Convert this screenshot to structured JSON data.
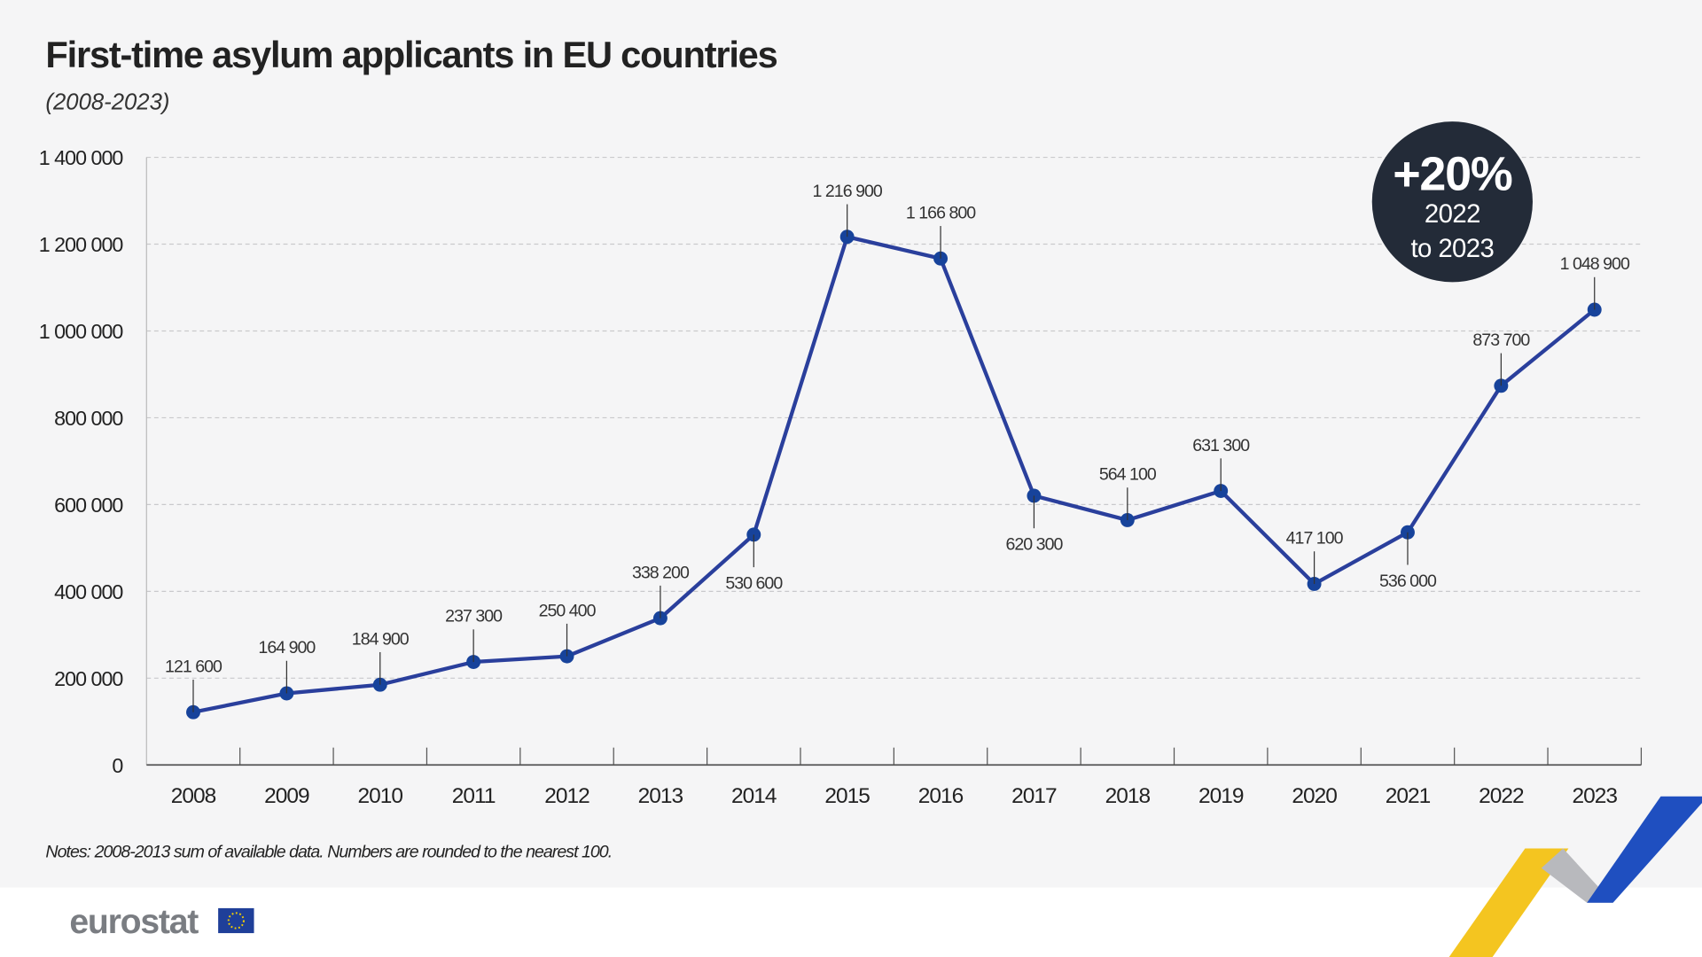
{
  "header": {
    "title": "First-time asylum applicants in EU countries",
    "subtitle": "(2008-2023)"
  },
  "badge": {
    "value": "+20%",
    "line1": "2022",
    "line2": "to 2023",
    "color": "#232b38"
  },
  "notes": "Notes: 2008-2013 sum of available data. Numbers are rounded to the nearest 100.",
  "logo": {
    "text": "eurostat"
  },
  "colors": {
    "line": "#2a3f9c",
    "marker": "#17439b",
    "background": "#f5f5f6"
  },
  "chart_data": {
    "type": "line",
    "title": "First-time asylum applicants in EU countries",
    "subtitle": "(2008-2023)",
    "xlabel": "",
    "ylabel": "",
    "ylim": [
      0,
      1400000
    ],
    "grid": true,
    "y_ticks": [
      0,
      200000,
      400000,
      600000,
      800000,
      1000000,
      1200000,
      1400000
    ],
    "y_tick_labels": [
      "0",
      "200 000",
      "400 000",
      "600 000",
      "800 000",
      "1 000 000",
      "1 200 000",
      "1 400 000"
    ],
    "categories": [
      "2008",
      "2009",
      "2010",
      "2011",
      "2012",
      "2013",
      "2014",
      "2015",
      "2016",
      "2017",
      "2018",
      "2019",
      "2020",
      "2021",
      "2022",
      "2023"
    ],
    "values": [
      121600,
      164900,
      184900,
      237300,
      250400,
      338200,
      530600,
      1216900,
      1166800,
      620300,
      564100,
      631300,
      417100,
      536000,
      873700,
      1048900
    ],
    "data_labels": [
      "121 600",
      "164 900",
      "184 900",
      "237 300",
      "250 400",
      "338 200",
      "530 600",
      "1 216 900",
      "1 166 800",
      "620 300",
      "564 100",
      "631 300",
      "417 100",
      "536 000",
      "873 700",
      "1 048 900"
    ],
    "label_positions": [
      "above",
      "above",
      "above",
      "above",
      "above",
      "above",
      "below",
      "above",
      "above",
      "below",
      "above",
      "above",
      "above",
      "below",
      "above",
      "above"
    ]
  }
}
